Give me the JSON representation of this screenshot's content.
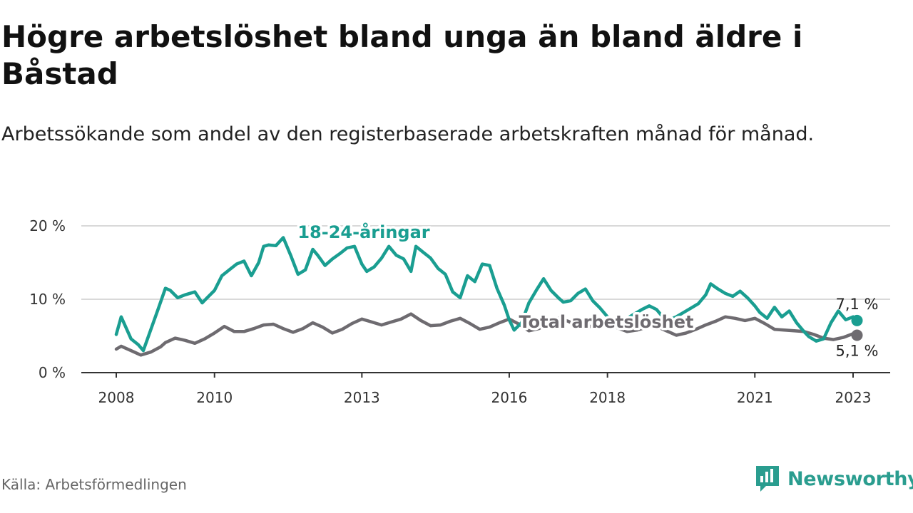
{
  "header": {
    "title": "Högre arbetslöshet bland unga än bland äldre i Båstad",
    "subtitle": "Arbetssökande som andel av den registerbaserade arbetskraften månad för månad."
  },
  "footer": {
    "source": "Källa: Arbetsförmedlingen",
    "brand": "Newsworthy"
  },
  "colors": {
    "youth": "#1a9e91",
    "total": "#6e6b70",
    "grid": "#d9d9d9",
    "axis": "#333333"
  },
  "chart_data": {
    "type": "line",
    "title": "Högre arbetslöshet bland unga än bland äldre i Båstad",
    "xlabel": "",
    "ylabel": "",
    "ylim": [
      0,
      20
    ],
    "xlim": [
      2008.0,
      2023.08
    ],
    "yticks": [
      {
        "value": 0,
        "label": "0 %"
      },
      {
        "value": 10,
        "label": "10 %"
      },
      {
        "value": 20,
        "label": "20 %"
      }
    ],
    "xticks": [
      {
        "value": 2008,
        "label": "2008"
      },
      {
        "value": 2010,
        "label": "2010"
      },
      {
        "value": 2013,
        "label": "2013"
      },
      {
        "value": 2016,
        "label": "2016"
      },
      {
        "value": 2018,
        "label": "2018"
      },
      {
        "value": 2021,
        "label": "2021"
      },
      {
        "value": 2023,
        "label": "2023"
      }
    ],
    "series": [
      {
        "name": "18-24-åringar",
        "key": "youth",
        "end_label": "7,1 %",
        "end_value": 7.1,
        "x": [
          2008.0,
          2008.1,
          2008.3,
          2008.45,
          2008.55,
          2008.7,
          2008.85,
          2009.0,
          2009.1,
          2009.25,
          2009.4,
          2009.6,
          2009.75,
          2009.85,
          2010.0,
          2010.15,
          2010.3,
          2010.45,
          2010.6,
          2010.75,
          2010.9,
          2011.0,
          2011.1,
          2011.25,
          2011.4,
          2011.55,
          2011.7,
          2011.85,
          2012.0,
          2012.1,
          2012.25,
          2012.4,
          2012.55,
          2012.7,
          2012.85,
          2013.0,
          2013.1,
          2013.25,
          2013.4,
          2013.55,
          2013.7,
          2013.85,
          2014.0,
          2014.1,
          2014.25,
          2014.4,
          2014.55,
          2014.7,
          2014.85,
          2015.0,
          2015.15,
          2015.3,
          2015.45,
          2015.6,
          2015.75,
          2015.9,
          2016.0,
          2016.1,
          2016.25,
          2016.4,
          2016.55,
          2016.7,
          2016.85,
          2017.0,
          2017.1,
          2017.25,
          2017.4,
          2017.55,
          2017.7,
          2017.85,
          2018.0,
          2018.1,
          2018.25,
          2018.4,
          2018.55,
          2018.7,
          2018.85,
          2019.0,
          2019.1,
          2019.25,
          2019.4,
          2019.55,
          2019.7,
          2019.85,
          2020.0,
          2020.1,
          2020.25,
          2020.4,
          2020.55,
          2020.7,
          2020.85,
          2021.0,
          2021.1,
          2021.25,
          2021.4,
          2021.55,
          2021.7,
          2021.85,
          2022.0,
          2022.1,
          2022.25,
          2022.4,
          2022.55,
          2022.7,
          2022.85,
          2023.0,
          2023.08
        ],
        "y": [
          5.2,
          7.6,
          4.6,
          3.8,
          3.0,
          5.8,
          8.6,
          11.5,
          11.2,
          10.2,
          10.6,
          11.0,
          9.5,
          10.2,
          11.2,
          13.2,
          14.0,
          14.8,
          15.2,
          13.2,
          15.0,
          17.2,
          17.4,
          17.3,
          18.4,
          16.0,
          13.4,
          14.0,
          16.8,
          16.0,
          14.6,
          15.5,
          16.2,
          17.0,
          17.2,
          14.8,
          13.8,
          14.4,
          15.6,
          17.2,
          16.0,
          15.5,
          13.8,
          17.2,
          16.4,
          15.6,
          14.2,
          13.4,
          11.0,
          10.2,
          13.2,
          12.4,
          14.8,
          14.6,
          11.5,
          9.2,
          7.2,
          5.8,
          6.8,
          9.5,
          11.2,
          12.8,
          11.2,
          10.2,
          9.6,
          9.8,
          10.8,
          11.4,
          9.8,
          8.8,
          7.6,
          7.2,
          6.8,
          7.4,
          8.0,
          8.6,
          9.1,
          8.6,
          7.8,
          7.2,
          7.6,
          8.2,
          8.8,
          9.4,
          10.6,
          12.1,
          11.4,
          10.8,
          10.4,
          11.1,
          10.2,
          9.1,
          8.2,
          7.4,
          8.9,
          7.6,
          8.4,
          6.8,
          5.6,
          4.9,
          4.3,
          4.6,
          6.8,
          8.4,
          7.2,
          7.6,
          7.1
        ]
      },
      {
        "name": "Total arbetslöshet",
        "key": "total",
        "end_label": "5,1 %",
        "end_value": 5.1,
        "x": [
          2008.0,
          2008.1,
          2008.3,
          2008.5,
          2008.7,
          2008.9,
          2009.0,
          2009.2,
          2009.4,
          2009.6,
          2009.8,
          2010.0,
          2010.2,
          2010.4,
          2010.6,
          2010.8,
          2011.0,
          2011.2,
          2011.4,
          2011.6,
          2011.8,
          2012.0,
          2012.2,
          2012.4,
          2012.6,
          2012.8,
          2013.0,
          2013.2,
          2013.4,
          2013.6,
          2013.8,
          2014.0,
          2014.2,
          2014.4,
          2014.6,
          2014.8,
          2015.0,
          2015.2,
          2015.4,
          2015.6,
          2015.8,
          2016.0,
          2016.2,
          2016.4,
          2016.6,
          2016.8,
          2017.0,
          2017.2,
          2017.4,
          2017.6,
          2017.8,
          2018.0,
          2018.2,
          2018.4,
          2018.6,
          2018.8,
          2019.0,
          2019.2,
          2019.4,
          2019.6,
          2019.8,
          2020.0,
          2020.2,
          2020.4,
          2020.6,
          2020.8,
          2021.0,
          2021.2,
          2021.4,
          2021.6,
          2021.8,
          2022.0,
          2022.2,
          2022.4,
          2022.6,
          2022.8,
          2023.0,
          2023.08
        ],
        "y": [
          3.2,
          3.6,
          3.0,
          2.4,
          2.8,
          3.5,
          4.1,
          4.7,
          4.4,
          4.0,
          4.6,
          5.4,
          6.3,
          5.6,
          5.6,
          6.0,
          6.5,
          6.6,
          6.0,
          5.5,
          6.0,
          6.8,
          6.2,
          5.4,
          5.9,
          6.7,
          7.3,
          6.9,
          6.5,
          6.9,
          7.3,
          8.0,
          7.1,
          6.4,
          6.5,
          7.0,
          7.4,
          6.7,
          5.9,
          6.2,
          6.8,
          7.3,
          6.6,
          5.7,
          6.0,
          6.7,
          7.4,
          7.0,
          6.4,
          6.2,
          6.6,
          7.0,
          6.1,
          5.6,
          5.8,
          6.2,
          6.3,
          5.7,
          5.1,
          5.4,
          5.9,
          6.5,
          7.0,
          7.6,
          7.4,
          7.1,
          7.4,
          6.7,
          5.9,
          5.8,
          5.7,
          5.6,
          5.2,
          4.7,
          4.5,
          4.8,
          5.3,
          5.1
        ]
      }
    ]
  }
}
